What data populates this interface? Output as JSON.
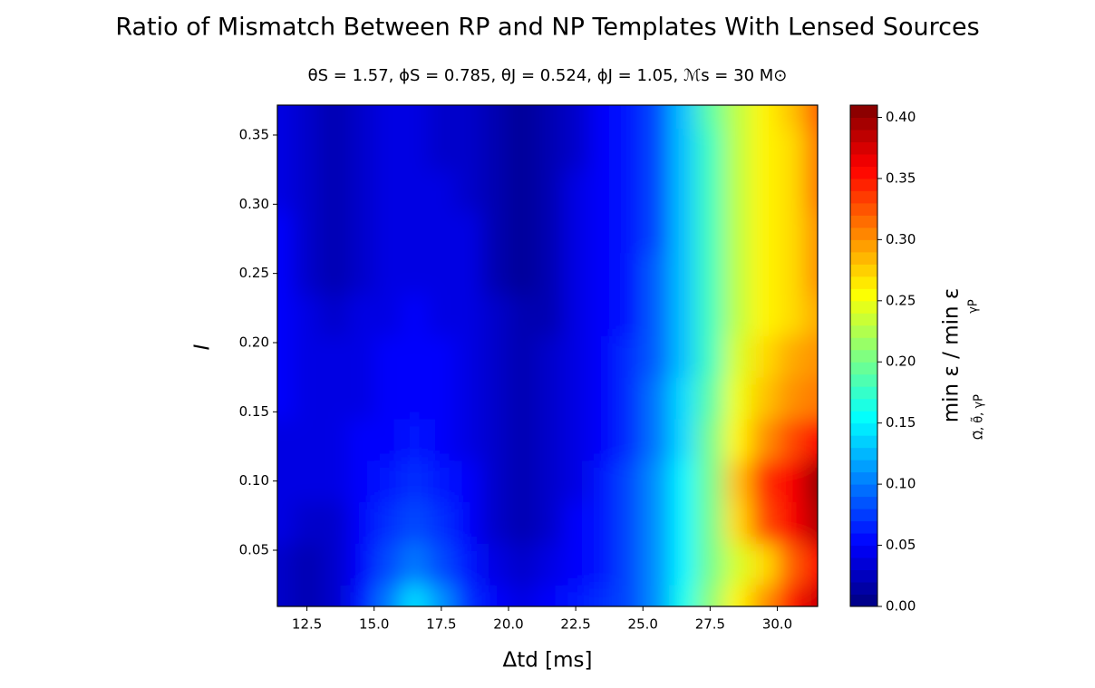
{
  "chart_data": {
    "type": "contour",
    "title": "Ratio of Mismatch Between RP and NP Templates With Lensed Sources",
    "subtitle": "θS = 1.57, ϕS = 0.785, θJ = 0.524, ϕJ = 1.05, ℳs = 30 M⊙",
    "x_label": "Δtd [ms]",
    "y_label": "I",
    "colorbar_label": "min ε / min ε",
    "colorbar_label_subscripts": [
      "Ω̃, θ̃, γP",
      "γP"
    ],
    "colormap": "jet",
    "xlim": [
      11.4,
      31.5
    ],
    "ylim": [
      0.0094,
      0.3716
    ],
    "clim": [
      0,
      0.41
    ],
    "xticks": [
      12.5,
      {
        "value": 15.0,
        "label": "15.0"
      },
      17.5,
      {
        "value": 20.0,
        "label": "20.0"
      },
      22.5,
      {
        "value": 25.0,
        "label": "25.0"
      },
      27.5,
      {
        "value": 30.0,
        "label": "30.0"
      }
    ],
    "yticks": [
      0.05,
      {
        "value": 0.1,
        "label": "0.10"
      },
      0.15,
      {
        "value": 0.2,
        "label": "0.20"
      },
      0.25,
      {
        "value": 0.3,
        "label": "0.30"
      },
      0.35
    ],
    "cticks": [
      {
        "value": 0.0,
        "label": "0.00"
      },
      0.05,
      {
        "value": 0.1,
        "label": "0.10"
      },
      0.15,
      {
        "value": 0.2,
        "label": "0.20"
      },
      0.25,
      {
        "value": 0.3,
        "label": "0.30"
      },
      0.35,
      {
        "value": 0.4,
        "label": "0.40"
      }
    ],
    "x": [
      11.5,
      12.5,
      13.5,
      14.5,
      15.5,
      16.5,
      17.5,
      18.5,
      19.5,
      20.5,
      21.5,
      22.5,
      23.5,
      24.5,
      25.5,
      26.5,
      27.5,
      28.5,
      29.5,
      30.5,
      31.5
    ],
    "y": [
      0.01,
      0.04,
      0.07,
      0.1,
      0.13,
      0.16,
      0.19,
      0.22,
      0.25,
      0.28,
      0.31,
      0.34,
      0.37
    ],
    "z": [
      [
        0.03,
        0.02,
        0.03,
        0.06,
        0.1,
        0.14,
        0.11,
        0.07,
        0.05,
        0.04,
        0.05,
        0.06,
        0.07,
        0.08,
        0.11,
        0.16,
        0.21,
        0.26,
        0.3,
        0.35,
        0.38
      ],
      [
        0.03,
        0.02,
        0.03,
        0.05,
        0.08,
        0.1,
        0.08,
        0.06,
        0.04,
        0.03,
        0.04,
        0.05,
        0.06,
        0.08,
        0.11,
        0.15,
        0.2,
        0.24,
        0.27,
        0.32,
        0.36
      ],
      [
        0.04,
        0.03,
        0.03,
        0.05,
        0.07,
        0.08,
        0.07,
        0.05,
        0.03,
        0.02,
        0.03,
        0.05,
        0.06,
        0.08,
        0.11,
        0.15,
        0.2,
        0.27,
        0.33,
        0.36,
        0.39
      ],
      [
        0.04,
        0.04,
        0.04,
        0.05,
        0.06,
        0.07,
        0.06,
        0.05,
        0.03,
        0.02,
        0.03,
        0.04,
        0.06,
        0.08,
        0.11,
        0.15,
        0.2,
        0.28,
        0.34,
        0.36,
        0.4
      ],
      [
        0.04,
        0.04,
        0.04,
        0.05,
        0.05,
        0.06,
        0.05,
        0.04,
        0.03,
        0.02,
        0.03,
        0.04,
        0.05,
        0.07,
        0.1,
        0.14,
        0.2,
        0.26,
        0.3,
        0.33,
        0.36
      ],
      [
        0.05,
        0.04,
        0.04,
        0.04,
        0.05,
        0.05,
        0.05,
        0.04,
        0.03,
        0.02,
        0.03,
        0.04,
        0.05,
        0.07,
        0.1,
        0.14,
        0.19,
        0.25,
        0.28,
        0.3,
        0.31
      ],
      [
        0.05,
        0.04,
        0.04,
        0.04,
        0.05,
        0.05,
        0.05,
        0.04,
        0.03,
        0.02,
        0.03,
        0.04,
        0.05,
        0.07,
        0.09,
        0.13,
        0.18,
        0.24,
        0.27,
        0.29,
        0.3
      ],
      [
        0.05,
        0.04,
        0.03,
        0.04,
        0.04,
        0.05,
        0.04,
        0.04,
        0.03,
        0.02,
        0.02,
        0.04,
        0.05,
        0.06,
        0.09,
        0.13,
        0.18,
        0.23,
        0.26,
        0.27,
        0.29
      ],
      [
        0.05,
        0.03,
        0.02,
        0.03,
        0.04,
        0.04,
        0.04,
        0.04,
        0.02,
        0.01,
        0.02,
        0.04,
        0.05,
        0.06,
        0.09,
        0.13,
        0.18,
        0.23,
        0.26,
        0.27,
        0.3
      ],
      [
        0.05,
        0.03,
        0.02,
        0.03,
        0.04,
        0.04,
        0.04,
        0.04,
        0.02,
        0.01,
        0.02,
        0.04,
        0.05,
        0.06,
        0.08,
        0.13,
        0.18,
        0.23,
        0.26,
        0.27,
        0.3
      ],
      [
        0.04,
        0.03,
        0.02,
        0.03,
        0.04,
        0.04,
        0.04,
        0.03,
        0.02,
        0.01,
        0.02,
        0.04,
        0.05,
        0.06,
        0.08,
        0.13,
        0.18,
        0.23,
        0.26,
        0.27,
        0.31
      ],
      [
        0.04,
        0.03,
        0.02,
        0.03,
        0.04,
        0.04,
        0.03,
        0.03,
        0.02,
        0.01,
        0.02,
        0.03,
        0.05,
        0.06,
        0.08,
        0.13,
        0.18,
        0.23,
        0.26,
        0.27,
        0.31
      ],
      [
        0.04,
        0.03,
        0.02,
        0.03,
        0.04,
        0.04,
        0.03,
        0.03,
        0.02,
        0.01,
        0.02,
        0.03,
        0.05,
        0.06,
        0.08,
        0.13,
        0.19,
        0.23,
        0.26,
        0.28,
        0.32
      ]
    ]
  }
}
